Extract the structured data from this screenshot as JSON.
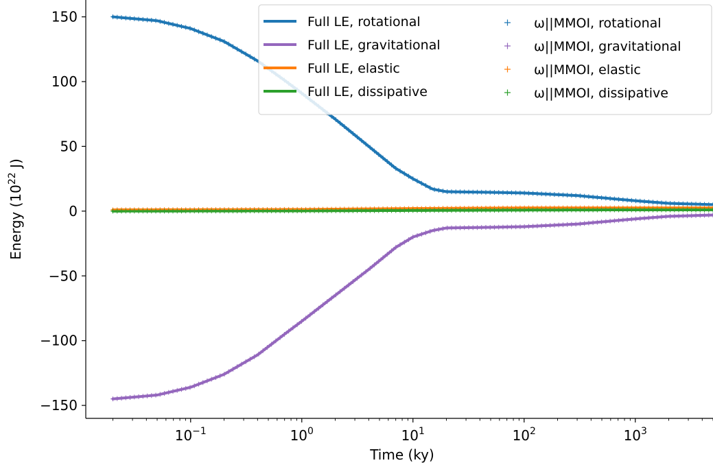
{
  "chart_data": {
    "type": "line",
    "xscale": "log",
    "xlim": [
      0.0114,
      5000
    ],
    "ylim": [
      -160,
      163
    ],
    "xlabel": "Time (ky)",
    "ylabel_base": "Energy (10",
    "ylabel_exp": "22",
    "ylabel_unit": " J)",
    "yticks": [
      {
        "value": -150,
        "label": "−150"
      },
      {
        "value": -100,
        "label": "−100"
      },
      {
        "value": -50,
        "label": "−50"
      },
      {
        "value": 0,
        "label": "0"
      },
      {
        "value": 50,
        "label": "50"
      },
      {
        "value": 100,
        "label": "100"
      },
      {
        "value": 150,
        "label": "150"
      }
    ],
    "xticks": [
      {
        "value": 0.1,
        "base": "10",
        "exp": "−1"
      },
      {
        "value": 1,
        "base": "10",
        "exp": "0"
      },
      {
        "value": 10,
        "base": "10",
        "exp": "1"
      },
      {
        "value": 100,
        "base": "10",
        "exp": "2"
      },
      {
        "value": 1000,
        "base": "10",
        "exp": "3"
      }
    ],
    "legend_position": "top-right",
    "series": [
      {
        "name": "Full LE, rotational",
        "style": "line",
        "color": "#1f77b4",
        "points": [
          [
            0.02,
            150
          ],
          [
            0.05,
            147
          ],
          [
            0.1,
            141
          ],
          [
            0.2,
            131
          ],
          [
            0.4,
            116
          ],
          [
            0.7,
            101
          ],
          [
            1,
            91
          ],
          [
            2,
            71
          ],
          [
            4,
            50
          ],
          [
            7,
            33
          ],
          [
            10,
            25
          ],
          [
            15,
            17
          ],
          [
            20,
            15
          ],
          [
            50,
            14.5
          ],
          [
            100,
            14
          ],
          [
            300,
            12
          ],
          [
            1000,
            8
          ],
          [
            2000,
            6
          ],
          [
            5000,
            5
          ]
        ]
      },
      {
        "name": "Full LE, gravitational",
        "style": "line",
        "color": "#9467bd",
        "points": [
          [
            0.02,
            -145
          ],
          [
            0.05,
            -142
          ],
          [
            0.1,
            -136
          ],
          [
            0.2,
            -126
          ],
          [
            0.4,
            -111
          ],
          [
            0.7,
            -95
          ],
          [
            1,
            -85
          ],
          [
            2,
            -65
          ],
          [
            4,
            -45
          ],
          [
            7,
            -28
          ],
          [
            10,
            -20
          ],
          [
            15,
            -15
          ],
          [
            20,
            -13
          ],
          [
            50,
            -12.5
          ],
          [
            100,
            -12
          ],
          [
            300,
            -10
          ],
          [
            1000,
            -6
          ],
          [
            2000,
            -4
          ],
          [
            5000,
            -3
          ]
        ]
      },
      {
        "name": "Full LE, elastic",
        "style": "line",
        "color": "#ff7f0e",
        "points": [
          [
            0.02,
            1
          ],
          [
            1,
            1.3
          ],
          [
            10,
            2
          ],
          [
            100,
            2.5
          ],
          [
            1000,
            2.5
          ],
          [
            5000,
            2.5
          ]
        ]
      },
      {
        "name": "Full LE, dissipative",
        "style": "line",
        "color": "#2ca02c",
        "points": [
          [
            0.02,
            0
          ],
          [
            1,
            0.2
          ],
          [
            10,
            0.5
          ],
          [
            100,
            0.8
          ],
          [
            1000,
            1
          ],
          [
            5000,
            1
          ]
        ]
      },
      {
        "name": "ω||MMOI, rotational",
        "style": "marker",
        "color": "#1f77b4",
        "points": [
          [
            0.02,
            150
          ],
          [
            0.05,
            147
          ],
          [
            0.1,
            141
          ],
          [
            0.2,
            131
          ],
          [
            0.4,
            116
          ],
          [
            0.7,
            101
          ],
          [
            1,
            91
          ],
          [
            2,
            71
          ],
          [
            4,
            50
          ],
          [
            7,
            33
          ],
          [
            10,
            25
          ],
          [
            15,
            17
          ],
          [
            20,
            15
          ],
          [
            50,
            14.5
          ],
          [
            100,
            14
          ],
          [
            300,
            12
          ],
          [
            1000,
            8
          ],
          [
            2000,
            6
          ],
          [
            5000,
            5
          ]
        ]
      },
      {
        "name": "ω||MMOI, gravitational",
        "style": "marker",
        "color": "#9467bd",
        "points": [
          [
            0.02,
            -145
          ],
          [
            0.05,
            -142
          ],
          [
            0.1,
            -136
          ],
          [
            0.2,
            -126
          ],
          [
            0.4,
            -111
          ],
          [
            0.7,
            -95
          ],
          [
            1,
            -85
          ],
          [
            2,
            -65
          ],
          [
            4,
            -45
          ],
          [
            7,
            -28
          ],
          [
            10,
            -20
          ],
          [
            15,
            -15
          ],
          [
            20,
            -13
          ],
          [
            50,
            -12.5
          ],
          [
            100,
            -12
          ],
          [
            300,
            -10
          ],
          [
            1000,
            -6
          ],
          [
            2000,
            -4
          ],
          [
            5000,
            -3
          ]
        ]
      },
      {
        "name": "ω||MMOI, elastic",
        "style": "marker",
        "color": "#ff7f0e",
        "points": [
          [
            0.02,
            1
          ],
          [
            1,
            1.3
          ],
          [
            10,
            2
          ],
          [
            100,
            2.5
          ],
          [
            1000,
            2.5
          ],
          [
            5000,
            2.5
          ]
        ]
      },
      {
        "name": "ω||MMOI, dissipative",
        "style": "marker",
        "color": "#2ca02c",
        "points": [
          [
            0.02,
            0
          ],
          [
            1,
            0.2
          ],
          [
            10,
            0.5
          ],
          [
            100,
            0.8
          ],
          [
            1000,
            1
          ],
          [
            5000,
            1
          ]
        ]
      }
    ]
  }
}
